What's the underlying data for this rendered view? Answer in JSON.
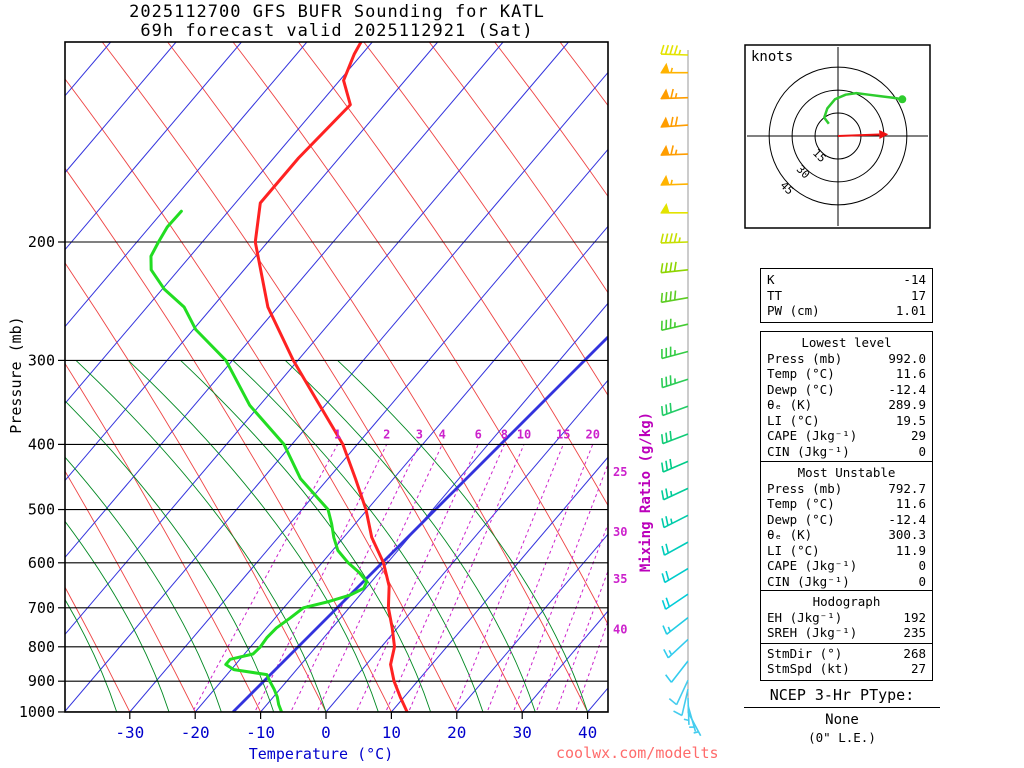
{
  "title": {
    "line1": "2025112700 GFS BUFR Sounding for KATL",
    "line2": "69h forecast valid 2025112921 (Sat)"
  },
  "axes": {
    "pressure_label": "Pressure (mb)",
    "temperature_label": "Temperature (°C)",
    "mixing_ratio_label": "Mixing Ratio (g/kg)",
    "pressure_ticks": [
      200,
      300,
      400,
      500,
      600,
      700,
      800,
      900,
      1000
    ],
    "temperature_ticks": [
      -30,
      -20,
      -10,
      0,
      10,
      20,
      30,
      40
    ]
  },
  "chart_data": {
    "type": "line",
    "title": "2025112700 GFS BUFR Sounding for KATL — 69h forecast valid 2025112921 (Sat)",
    "x_axis": {
      "label": "Temperature (°C)",
      "ticks": [
        -30,
        -20,
        -10,
        0,
        10,
        20,
        30,
        40
      ]
    },
    "y_axis": {
      "label": "Pressure (mb)",
      "scale": "log",
      "range": [
        100,
        1000
      ],
      "ticks": [
        200,
        300,
        400,
        500,
        600,
        700,
        800,
        900,
        1000
      ]
    },
    "thick_isotherm_c": -14,
    "mixing_ratio_lines_gkg": [
      1,
      2,
      3,
      4,
      6,
      8,
      10,
      15,
      20,
      25,
      30,
      35,
      40
    ],
    "series": [
      {
        "name": "Temperature (°C)",
        "color": "#ff2222",
        "points": [
          [
            1000,
            12.4
          ],
          [
            950,
            9.4
          ],
          [
            900,
            6.4
          ],
          [
            850,
            3.7
          ],
          [
            800,
            2.0
          ],
          [
            750,
            -0.8
          ],
          [
            700,
            -4.0
          ],
          [
            650,
            -6.7
          ],
          [
            600,
            -10.6
          ],
          [
            550,
            -15.7
          ],
          [
            500,
            -20.2
          ],
          [
            450,
            -25.8
          ],
          [
            400,
            -32.2
          ],
          [
            350,
            -40.8
          ],
          [
            300,
            -50.7
          ],
          [
            250,
            -61.5
          ],
          [
            200,
            -71.9
          ],
          [
            175,
            -76.2
          ],
          [
            150,
            -76.2
          ],
          [
            125,
            -75.2
          ],
          [
            115,
            -79.4
          ],
          [
            105,
            -81.2
          ],
          [
            101,
            -81.7
          ]
        ]
      },
      {
        "name": "Dewpoint (°C)",
        "color": "#22dd22",
        "points": [
          [
            1000,
            -6.8
          ],
          [
            975,
            -8.2
          ],
          [
            950,
            -9.4
          ],
          [
            925,
            -10.9
          ],
          [
            900,
            -12.6
          ],
          [
            880,
            -13.9
          ],
          [
            865,
            -19.6
          ],
          [
            850,
            -21.5
          ],
          [
            835,
            -21.5
          ],
          [
            820,
            -18.7
          ],
          [
            800,
            -18.5
          ],
          [
            775,
            -18.7
          ],
          [
            750,
            -18.5
          ],
          [
            725,
            -17.7
          ],
          [
            700,
            -17.0
          ],
          [
            685,
            -13.9
          ],
          [
            670,
            -11.5
          ],
          [
            655,
            -10.3
          ],
          [
            640,
            -10.7
          ],
          [
            620,
            -13.1
          ],
          [
            600,
            -16.0
          ],
          [
            575,
            -19.2
          ],
          [
            550,
            -21.5
          ],
          [
            525,
            -23.6
          ],
          [
            500,
            -26.0
          ],
          [
            450,
            -34.2
          ],
          [
            400,
            -41.2
          ],
          [
            350,
            -51.5
          ],
          [
            300,
            -61.0
          ],
          [
            270,
            -69.6
          ],
          [
            250,
            -74.3
          ],
          [
            235,
            -79.7
          ],
          [
            220,
            -84.2
          ],
          [
            210,
            -86.0
          ],
          [
            200,
            -86.7
          ],
          [
            190,
            -87.3
          ],
          [
            180,
            -87.2
          ]
        ]
      }
    ],
    "wind_barbs": [
      {
        "p": 103,
        "spd": 45,
        "dir": 272,
        "color": "#e3e300"
      },
      {
        "p": 112,
        "spd": 55,
        "dir": 270,
        "color": "#ffb300"
      },
      {
        "p": 122,
        "spd": 65,
        "dir": 268,
        "color": "#ff9d00"
      },
      {
        "p": 134,
        "spd": 70,
        "dir": 266,
        "color": "#ff9d00"
      },
      {
        "p": 148,
        "spd": 65,
        "dir": 268,
        "color": "#ff9d00"
      },
      {
        "p": 164,
        "spd": 55,
        "dir": 268,
        "color": "#ffb300"
      },
      {
        "p": 181,
        "spd": 50,
        "dir": 270,
        "color": "#e3e300"
      },
      {
        "p": 200,
        "spd": 45,
        "dir": 268,
        "color": "#c6df00"
      },
      {
        "p": 220,
        "spd": 40,
        "dir": 264,
        "color": "#8ed500"
      },
      {
        "p": 242,
        "spd": 38,
        "dir": 260,
        "color": "#5ccc22"
      },
      {
        "p": 265,
        "spd": 36,
        "dir": 257,
        "color": "#44cc33"
      },
      {
        "p": 291,
        "spd": 35,
        "dir": 255,
        "color": "#33cc44"
      },
      {
        "p": 320,
        "spd": 33,
        "dir": 252,
        "color": "#2acc55"
      },
      {
        "p": 351,
        "spd": 32,
        "dir": 250,
        "color": "#22cc66"
      },
      {
        "p": 386,
        "spd": 30,
        "dir": 249,
        "color": "#11cc77"
      },
      {
        "p": 424,
        "spd": 28,
        "dir": 247,
        "color": "#00cc88"
      },
      {
        "p": 465,
        "spd": 26,
        "dir": 245,
        "color": "#00cc99"
      },
      {
        "p": 510,
        "spd": 24,
        "dir": 243,
        "color": "#00ccaa"
      },
      {
        "p": 559,
        "spd": 22,
        "dir": 241,
        "color": "#00ccbb"
      },
      {
        "p": 612,
        "spd": 20,
        "dir": 239,
        "color": "#00cccc"
      },
      {
        "p": 668,
        "spd": 18,
        "dir": 236,
        "color": "#00ccd8"
      },
      {
        "p": 724,
        "spd": 15,
        "dir": 232,
        "color": "#22cce4"
      },
      {
        "p": 780,
        "spd": 13,
        "dir": 227,
        "color": "#33ccee"
      },
      {
        "p": 840,
        "spd": 11,
        "dir": 218,
        "color": "#33ccee"
      },
      {
        "p": 897,
        "spd": 9,
        "dir": 205,
        "color": "#44ccee"
      },
      {
        "p": 925,
        "spd": 8,
        "dir": 193,
        "color": "#44ccee"
      },
      {
        "p": 953,
        "spd": 7,
        "dir": 178,
        "color": "#44ccee"
      },
      {
        "p": 978,
        "spd": 6,
        "dir": 164,
        "color": "#44ccee"
      },
      {
        "p": 1000,
        "spd": 5,
        "dir": 152,
        "color": "#44ccee"
      }
    ]
  },
  "hodograph": {
    "unit_label": "knots",
    "rings_kt": [
      15,
      30,
      45
    ],
    "trace_uv_kt": [
      [
        -6,
        8
      ],
      [
        -9,
        12
      ],
      [
        -7,
        18
      ],
      [
        -2,
        24
      ],
      [
        5,
        27
      ],
      [
        12,
        28
      ],
      [
        20,
        27
      ],
      [
        28,
        26
      ],
      [
        36,
        25
      ],
      [
        42,
        24
      ]
    ],
    "storm_motion": {
      "dir_deg": 268,
      "spd_kt": 27
    }
  },
  "indices": {
    "summary": {
      "rows": [
        [
          "K",
          "-14"
        ],
        [
          "TT",
          "17"
        ],
        [
          "PW (cm)",
          "1.01"
        ]
      ]
    },
    "lowest_level": {
      "header": "Lowest level",
      "rows": [
        [
          "Press (mb)",
          "992.0"
        ],
        [
          "Temp (°C)",
          "11.6"
        ],
        [
          "Dewp (°C)",
          "-12.4"
        ],
        [
          "θₑ (K)",
          "289.9"
        ],
        [
          "LI (°C)",
          "19.5"
        ],
        [
          "CAPE (Jkg⁻¹)",
          "29"
        ],
        [
          "CIN (Jkg⁻¹)",
          "0"
        ]
      ]
    },
    "most_unstable": {
      "header": "Most Unstable",
      "rows": [
        [
          "Press (mb)",
          "792.7"
        ],
        [
          "Temp (°C)",
          "11.6"
        ],
        [
          "Dewp (°C)",
          "-12.4"
        ],
        [
          "θₑ (K)",
          "300.3"
        ],
        [
          "LI (°C)",
          "11.9"
        ],
        [
          "CAPE (Jkg⁻¹)",
          "0"
        ],
        [
          "CIN (Jkg⁻¹)",
          "0"
        ]
      ]
    },
    "hodograph_box": {
      "header": "Hodograph",
      "rows": [
        [
          "EH (Jkg⁻¹)",
          "192"
        ],
        [
          "SREH (Jkg⁻¹)",
          "235"
        ],
        [
          "StmDir (°)",
          "268"
        ],
        [
          "StmSpd (kt)",
          "27"
        ]
      ]
    }
  },
  "ptype": {
    "header": "NCEP 3-Hr PType:",
    "value": "None",
    "note": "(0\" L.E.)"
  },
  "watermark": "coolwx.com/modelts",
  "colors": {
    "temperature_trace": "#ff2222",
    "dewpoint_trace": "#22dd22",
    "isotherm": "#3333dd",
    "dry_adiabat": "#ee4444",
    "moist_adiabat": "#008822",
    "mixing_ratio": "#cc22cc",
    "pressure_line": "#000000",
    "axis_text_temperature": "#0000cc",
    "hodograph_trace": "#2ecc2e",
    "storm_motion_arrow": "#ee1111",
    "watermark": "#ff6b6b"
  }
}
